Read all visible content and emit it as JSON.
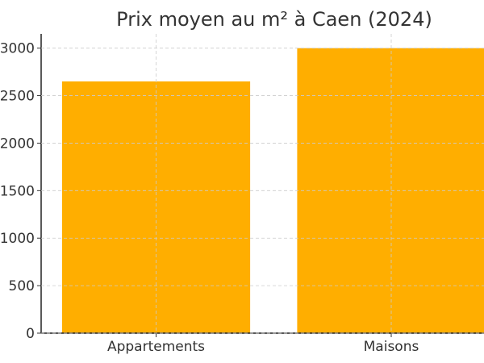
{
  "chart_data": {
    "type": "bar",
    "title": "Prix moyen au m² à Caen (2024)",
    "categories": [
      "Appartements",
      "Maisons"
    ],
    "values": [
      2650,
      3000
    ],
    "xlabel": "",
    "ylabel": "",
    "ylim": [
      0,
      3150
    ],
    "yticks": [
      0,
      500,
      1000,
      1500,
      2000,
      2500,
      3000
    ],
    "ytick_labels": [
      "0",
      "500",
      "1000",
      "1500",
      "2000",
      "2500",
      "3000"
    ],
    "grid": true,
    "bar_color": "#FFAE00"
  }
}
